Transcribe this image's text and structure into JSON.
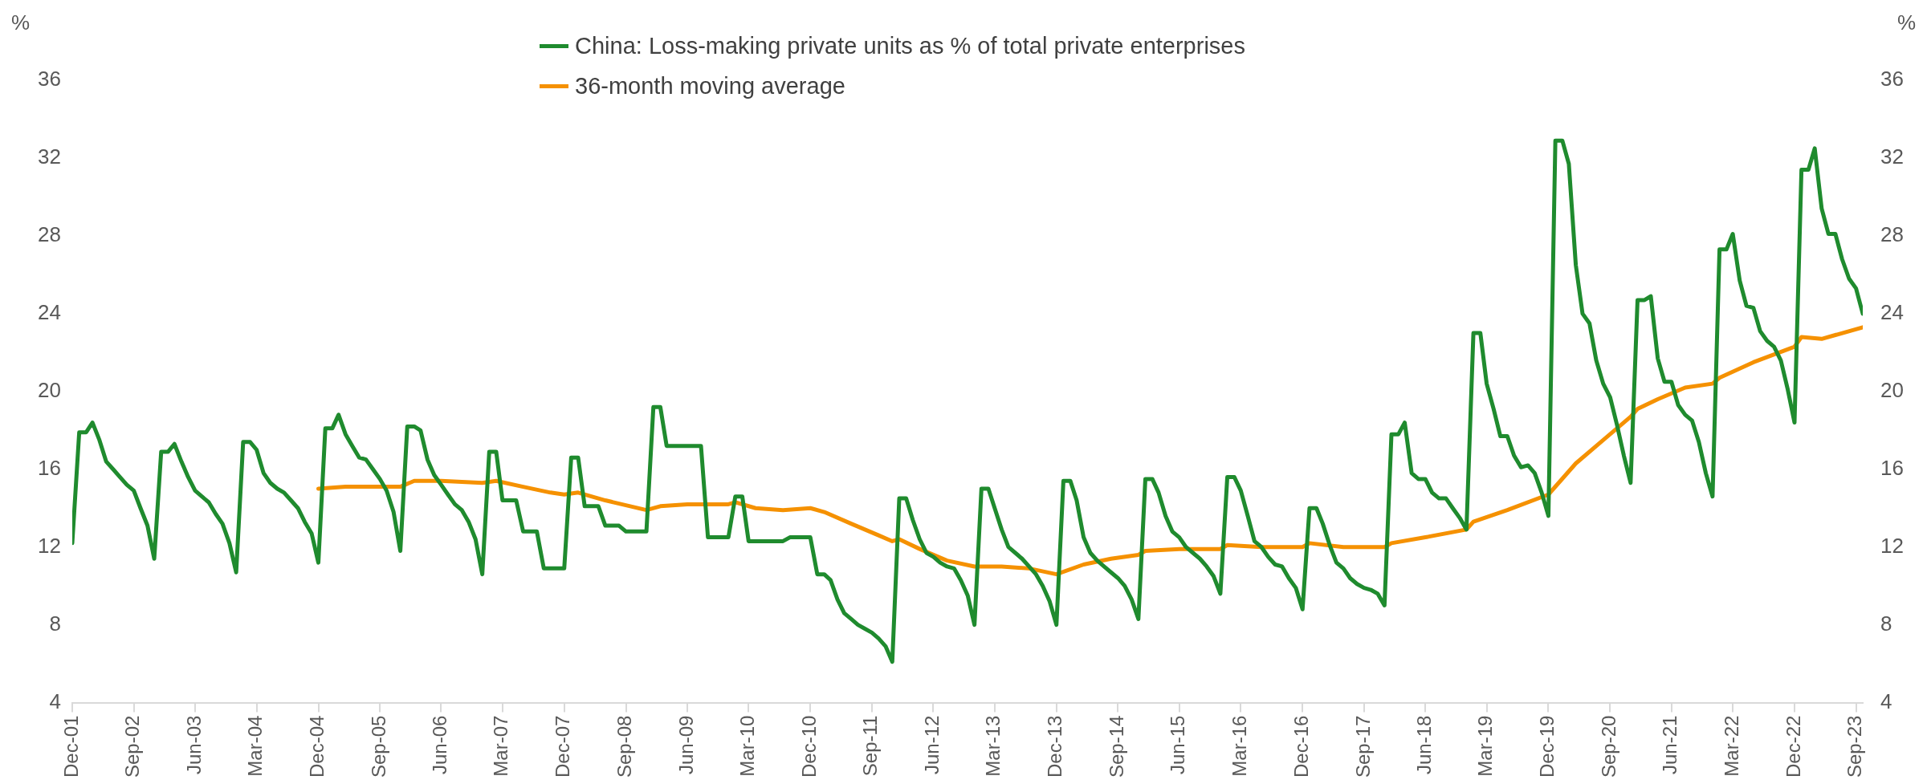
{
  "chart_data": {
    "type": "line",
    "ylabel": "%",
    "y2label": "%",
    "x": [
      "2001-12",
      "2002-01",
      "2002-02",
      "2002-03",
      "2002-04",
      "2002-05",
      "2002-06",
      "2002-07",
      "2002-08",
      "2002-09",
      "2002-10",
      "2002-11",
      "2002-12",
      "2003-01",
      "2003-02",
      "2003-03",
      "2003-04",
      "2003-05",
      "2003-06",
      "2003-07",
      "2003-08",
      "2003-09",
      "2003-10",
      "2003-11",
      "2003-12",
      "2004-01",
      "2004-02",
      "2004-03",
      "2004-04",
      "2004-05",
      "2004-06",
      "2004-07",
      "2004-08",
      "2004-09",
      "2004-10",
      "2004-11",
      "2004-12",
      "2005-01",
      "2005-02",
      "2005-03",
      "2005-04",
      "2005-05",
      "2005-06",
      "2005-07",
      "2005-08",
      "2005-09",
      "2005-10",
      "2005-11",
      "2005-12",
      "2006-01",
      "2006-02",
      "2006-03",
      "2006-04",
      "2006-05",
      "2006-06",
      "2006-07",
      "2006-08",
      "2006-09",
      "2006-10",
      "2006-11",
      "2006-12",
      "2007-01",
      "2007-02",
      "2007-03",
      "2007-04",
      "2007-05",
      "2007-06",
      "2007-07",
      "2007-08",
      "2007-09",
      "2007-10",
      "2007-11",
      "2007-12",
      "2008-01",
      "2008-02",
      "2008-03",
      "2008-04",
      "2008-05",
      "2008-06",
      "2008-07",
      "2008-08",
      "2008-09",
      "2008-10",
      "2008-11",
      "2008-12",
      "2009-01",
      "2009-02",
      "2009-03",
      "2009-04",
      "2009-05",
      "2009-06",
      "2009-07",
      "2009-08",
      "2009-09",
      "2009-10",
      "2009-11",
      "2009-12",
      "2010-01",
      "2010-02",
      "2010-03",
      "2010-04",
      "2010-05",
      "2010-06",
      "2010-07",
      "2010-08",
      "2010-09",
      "2010-10",
      "2010-11",
      "2010-12",
      "2011-01",
      "2011-02",
      "2011-03",
      "2011-04",
      "2011-05",
      "2011-06",
      "2011-07",
      "2011-08",
      "2011-09",
      "2011-10",
      "2011-11",
      "2011-12",
      "2012-01",
      "2012-02",
      "2012-03",
      "2012-04",
      "2012-05",
      "2012-06",
      "2012-07",
      "2012-08",
      "2012-09",
      "2012-10",
      "2012-11",
      "2012-12",
      "2013-01",
      "2013-02",
      "2013-03",
      "2013-04",
      "2013-05",
      "2013-06",
      "2013-07",
      "2013-08",
      "2013-09",
      "2013-10",
      "2013-11",
      "2013-12",
      "2014-01",
      "2014-02",
      "2014-03",
      "2014-04",
      "2014-05",
      "2014-06",
      "2014-07",
      "2014-08",
      "2014-09",
      "2014-10",
      "2014-11",
      "2014-12",
      "2015-01",
      "2015-02",
      "2015-03",
      "2015-04",
      "2015-05",
      "2015-06",
      "2015-07",
      "2015-08",
      "2015-09",
      "2015-10",
      "2015-11",
      "2015-12",
      "2016-01",
      "2016-02",
      "2016-03",
      "2016-04",
      "2016-05",
      "2016-06",
      "2016-07",
      "2016-08",
      "2016-09",
      "2016-10",
      "2016-11",
      "2016-12",
      "2017-01",
      "2017-02",
      "2017-03",
      "2017-04",
      "2017-05",
      "2017-06",
      "2017-07",
      "2017-08",
      "2017-09",
      "2017-10",
      "2017-11",
      "2017-12",
      "2018-01",
      "2018-02",
      "2018-03",
      "2018-04",
      "2018-05",
      "2018-06",
      "2018-07",
      "2018-08",
      "2018-09",
      "2018-10",
      "2018-11",
      "2018-12",
      "2019-01",
      "2019-02",
      "2019-03",
      "2019-04",
      "2019-05",
      "2019-06",
      "2019-07",
      "2019-08",
      "2019-09",
      "2019-10",
      "2019-11",
      "2019-12",
      "2020-01",
      "2020-02",
      "2020-03",
      "2020-04",
      "2020-05",
      "2020-06",
      "2020-07",
      "2020-08",
      "2020-09",
      "2020-10",
      "2020-11",
      "2020-12",
      "2021-01",
      "2021-02",
      "2021-03",
      "2021-04",
      "2021-05",
      "2021-06",
      "2021-07",
      "2021-08",
      "2021-09",
      "2021-10",
      "2021-11",
      "2021-12",
      "2022-01",
      "2022-02",
      "2022-03",
      "2022-04",
      "2022-05",
      "2022-06",
      "2022-07",
      "2022-08",
      "2022-09",
      "2022-10",
      "2022-11",
      "2022-12",
      "2023-01",
      "2023-02",
      "2023-03",
      "2023-04",
      "2023-05",
      "2023-06",
      "2023-07",
      "2023-08",
      "2023-09",
      "2023-10"
    ],
    "series": [
      {
        "name": "China: Loss-making private units as % of total private enterprises",
        "color": "#1f8b2e",
        "values": [
          12.2,
          17.9,
          17.9,
          18.4,
          17.5,
          16.4,
          16.0,
          15.6,
          15.2,
          14.9,
          14.0,
          13.1,
          11.4,
          16.9,
          16.9,
          17.3,
          16.4,
          15.6,
          14.9,
          14.6,
          14.3,
          13.7,
          13.2,
          12.2,
          10.7,
          17.4,
          17.4,
          17.0,
          15.8,
          15.3,
          15.0,
          14.8,
          14.4,
          14.0,
          13.3,
          12.7,
          11.2,
          18.1,
          18.1,
          18.8,
          17.8,
          17.2,
          16.6,
          16.5,
          16.0,
          15.5,
          14.9,
          13.8,
          11.8,
          18.2,
          18.2,
          18.0,
          16.5,
          15.7,
          15.2,
          14.7,
          14.2,
          13.9,
          13.3,
          12.4,
          10.6,
          16.9,
          16.9,
          14.4,
          14.4,
          14.4,
          12.8,
          12.8,
          12.8,
          10.9,
          10.9,
          10.9,
          10.9,
          16.6,
          16.6,
          14.1,
          14.1,
          14.1,
          13.1,
          13.1,
          13.1,
          12.8,
          12.8,
          12.8,
          12.8,
          19.2,
          19.2,
          17.2,
          17.2,
          17.2,
          17.2,
          17.2,
          17.2,
          12.5,
          12.5,
          12.5,
          12.5,
          14.6,
          14.6,
          12.3,
          12.3,
          12.3,
          12.3,
          12.3,
          12.3,
          12.5,
          12.5,
          12.5,
          12.5,
          10.6,
          10.6,
          10.3,
          9.3,
          8.6,
          8.3,
          8.0,
          7.8,
          7.6,
          7.3,
          6.9,
          6.1,
          14.5,
          14.5,
          13.4,
          12.4,
          11.7,
          11.5,
          11.2,
          11.0,
          10.9,
          10.3,
          9.5,
          8.0,
          15.0,
          15.0,
          14.0,
          12.9,
          12.0,
          11.7,
          11.4,
          11.0,
          10.6,
          10.0,
          9.2,
          8.0,
          15.4,
          15.4,
          14.4,
          12.5,
          11.7,
          11.3,
          11.0,
          10.7,
          10.4,
          10.0,
          9.3,
          8.3,
          15.5,
          15.5,
          14.8,
          13.6,
          12.8,
          12.5,
          12.0,
          11.7,
          11.4,
          11.0,
          10.5,
          9.6,
          15.6,
          15.6,
          14.9,
          13.6,
          12.3,
          12.0,
          11.5,
          11.1,
          11.0,
          10.4,
          9.9,
          8.8,
          14.0,
          14.0,
          13.2,
          12.1,
          11.2,
          10.9,
          10.4,
          10.1,
          9.9,
          9.8,
          9.6,
          9.0,
          17.8,
          17.8,
          18.4,
          15.8,
          15.5,
          15.5,
          14.8,
          14.5,
          14.5,
          14.0,
          13.5,
          12.9,
          23.0,
          23.0,
          20.4,
          19.1,
          17.7,
          17.7,
          16.7,
          16.1,
          16.2,
          15.8,
          14.8,
          13.6,
          32.9,
          32.9,
          31.7,
          26.5,
          24.0,
          23.5,
          21.6,
          20.4,
          19.7,
          18.3,
          16.7,
          15.3,
          24.7,
          24.7,
          24.9,
          21.7,
          20.5,
          20.5,
          19.3,
          18.8,
          18.5,
          17.4,
          15.8,
          14.6,
          27.3,
          27.3,
          28.1,
          25.7,
          24.4,
          24.3,
          23.1,
          22.6,
          22.3,
          21.6,
          20.1,
          18.4,
          31.4,
          31.4,
          32.5,
          29.4,
          28.1,
          28.1,
          26.8,
          25.8,
          25.3,
          24.0
        ]
      },
      {
        "name": "36-month moving average",
        "color": "#f59100",
        "x": [
          "2004-12",
          "2005-04",
          "2005-12",
          "2006-02",
          "2006-06",
          "2006-12",
          "2007-02",
          "2007-06",
          "2007-10",
          "2007-12",
          "2008-02",
          "2008-06",
          "2008-12",
          "2009-02",
          "2009-06",
          "2009-08",
          "2009-12",
          "2010-01",
          "2010-04",
          "2010-08",
          "2010-12",
          "2011-02",
          "2011-06",
          "2011-10",
          "2011-12",
          "2012-01",
          "2012-04",
          "2012-08",
          "2012-12",
          "2013-04",
          "2013-08",
          "2013-12",
          "2014-04",
          "2014-08",
          "2014-12",
          "2015-01",
          "2015-06",
          "2015-12",
          "2016-01",
          "2016-06",
          "2016-12",
          "2017-01",
          "2017-06",
          "2017-12",
          "2018-01",
          "2018-06",
          "2018-12",
          "2019-01",
          "2019-06",
          "2019-12",
          "2020-04",
          "2020-08",
          "2020-12",
          "2021-01",
          "2021-04",
          "2021-08",
          "2021-12",
          "2022-01",
          "2022-06",
          "2022-12",
          "2023-01",
          "2023-04",
          "2023-06",
          "2023-10"
        ],
        "values": [
          15.0,
          15.1,
          15.1,
          15.4,
          15.4,
          15.3,
          15.4,
          15.1,
          14.8,
          14.7,
          14.8,
          14.4,
          13.9,
          14.1,
          14.2,
          14.2,
          14.2,
          14.3,
          14.0,
          13.9,
          14.0,
          13.8,
          13.2,
          12.6,
          12.3,
          12.4,
          11.9,
          11.3,
          11.0,
          11.0,
          10.9,
          10.6,
          11.1,
          11.4,
          11.6,
          11.8,
          11.9,
          11.9,
          12.1,
          12.0,
          12.0,
          12.2,
          12.0,
          12.0,
          12.2,
          12.5,
          12.9,
          13.3,
          13.9,
          14.7,
          16.3,
          17.5,
          18.7,
          19.1,
          19.6,
          20.2,
          20.4,
          20.7,
          21.5,
          22.3,
          22.8,
          22.7,
          22.9,
          23.3
        ]
      }
    ],
    "xlim": [
      "2001-12",
      "2023-10"
    ],
    "xticks": [
      {
        "value": "2001-12",
        "label": "Dec-01"
      },
      {
        "value": "2002-09",
        "label": "Sep-02"
      },
      {
        "value": "2003-06",
        "label": "Jun-03"
      },
      {
        "value": "2004-03",
        "label": "Mar-04"
      },
      {
        "value": "2004-12",
        "label": "Dec-04"
      },
      {
        "value": "2005-09",
        "label": "Sep-05"
      },
      {
        "value": "2006-06",
        "label": "Jun-06"
      },
      {
        "value": "2007-03",
        "label": "Mar-07"
      },
      {
        "value": "2007-12",
        "label": "Dec-07"
      },
      {
        "value": "2008-09",
        "label": "Sep-08"
      },
      {
        "value": "2009-06",
        "label": "Jun-09"
      },
      {
        "value": "2010-03",
        "label": "Mar-10"
      },
      {
        "value": "2010-12",
        "label": "Dec-10"
      },
      {
        "value": "2011-09",
        "label": "Sep-11"
      },
      {
        "value": "2012-06",
        "label": "Jun-12"
      },
      {
        "value": "2013-03",
        "label": "Mar-13"
      },
      {
        "value": "2013-12",
        "label": "Dec-13"
      },
      {
        "value": "2014-09",
        "label": "Sep-14"
      },
      {
        "value": "2015-06",
        "label": "Jun-15"
      },
      {
        "value": "2016-03",
        "label": "Mar-16"
      },
      {
        "value": "2016-12",
        "label": "Dec-16"
      },
      {
        "value": "2017-09",
        "label": "Sep-17"
      },
      {
        "value": "2018-06",
        "label": "Jun-18"
      },
      {
        "value": "2019-03",
        "label": "Mar-19"
      },
      {
        "value": "2019-12",
        "label": "Dec-19"
      },
      {
        "value": "2020-09",
        "label": "Sep-20"
      },
      {
        "value": "2021-06",
        "label": "Jun-21"
      },
      {
        "value": "2022-03",
        "label": "Mar-22"
      },
      {
        "value": "2022-12",
        "label": "Dec-22"
      },
      {
        "value": "2023-09",
        "label": "Sep-23"
      }
    ],
    "ylim": [
      4,
      36
    ],
    "yticks": [
      4,
      8,
      12,
      16,
      20,
      24,
      28,
      32,
      36
    ],
    "y2lim": [
      4,
      36
    ],
    "y2ticks": [
      4,
      8,
      12,
      16,
      20,
      24,
      28,
      32,
      36
    ],
    "grid": false,
    "legend": "top",
    "marker": "none",
    "line_style": "solid"
  }
}
